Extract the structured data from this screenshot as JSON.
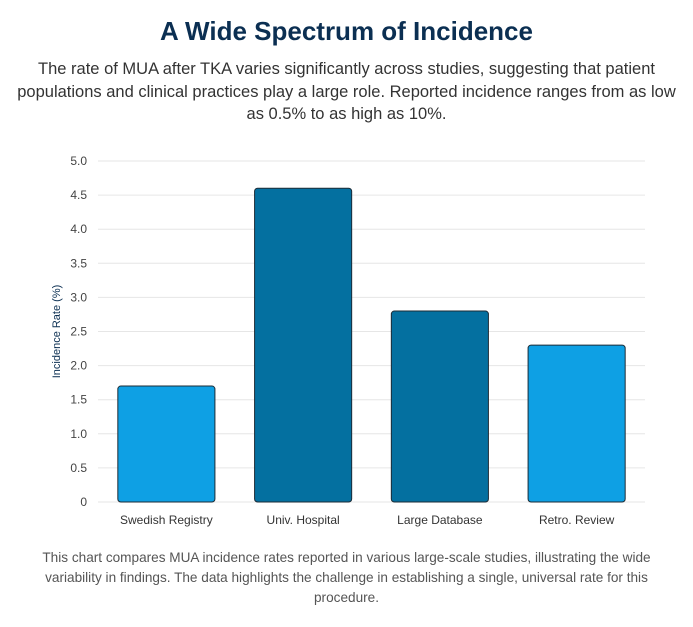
{
  "header": {
    "title": "A Wide Spectrum of Incidence",
    "subtitle": "The rate of MUA after TKA varies significantly across studies, suggesting that patient populations and clinical practices play a large role. Reported incidence ranges from as low as 0.5% to as high as 10%."
  },
  "caption": "This chart compares MUA incidence rates reported in various large-scale studies, illustrating the wide variability in findings. The data highlights the challenge in establishing a single, universal rate for this procedure.",
  "colors": {
    "light_blue": "#0ea0e4",
    "dark_blue": "#0470a0",
    "bar_border": "#1c2b36",
    "grid": "#e6e6e6",
    "title": "#0b2f52"
  },
  "chart_data": {
    "type": "bar",
    "title": "",
    "xlabel": "",
    "ylabel": "Incidence Rate (%)",
    "ylim": [
      0,
      5
    ],
    "yticks": [
      "0",
      "0.5",
      "1.0",
      "1.5",
      "2.0",
      "2.5",
      "3.0",
      "3.5",
      "4.0",
      "4.5",
      "5.0"
    ],
    "categories": [
      "Swedish Registry",
      "Univ. Hospital",
      "Large Database",
      "Retro. Review"
    ],
    "values": [
      1.7,
      4.6,
      2.8,
      2.3
    ],
    "bar_colors": [
      "light_blue",
      "dark_blue",
      "dark_blue",
      "light_blue"
    ],
    "grid": true,
    "legend": "none"
  }
}
